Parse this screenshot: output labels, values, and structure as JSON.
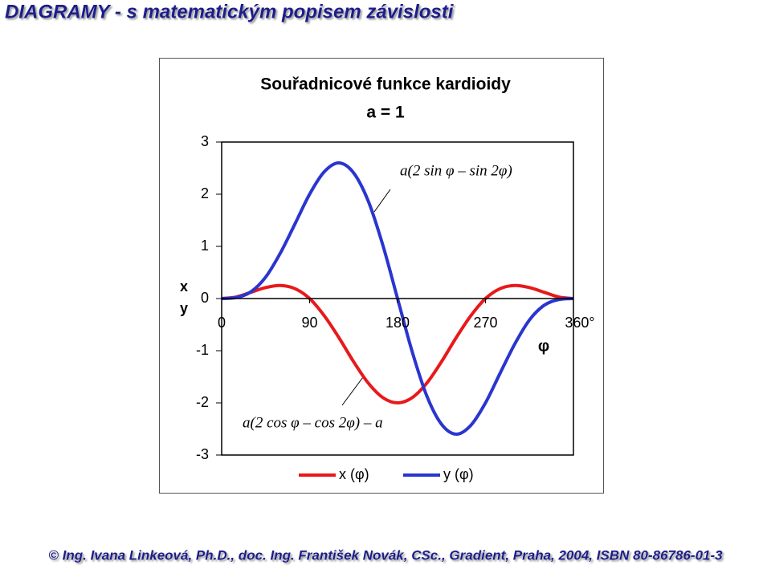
{
  "title": "DIAGRAMY - s matematickým popisem závislosti",
  "footer": "© Ing. Ivana Linkeová, Ph.D., doc. Ing. František Novák, CSc., Gradient, Praha, 2004, ISBN 80-86786-01-3",
  "chart_data": {
    "type": "line",
    "title": "Souřadnicové funkce kardioidy",
    "subtitle": "a = 1",
    "ylabel": [
      "x",
      "y"
    ],
    "xlabel": "φ",
    "annotations": [
      "a(2 sin φ – sin 2φ)",
      "a(2 cos φ – cos 2φ) – a"
    ],
    "x": [
      0,
      15,
      30,
      45,
      60,
      75,
      90,
      105,
      120,
      135,
      150,
      165,
      180,
      195,
      210,
      225,
      240,
      255,
      270,
      285,
      300,
      315,
      330,
      345,
      360
    ],
    "series": [
      {
        "name": "x (φ)",
        "color": "#e8191a",
        "values": [
          0,
          0.03,
          0.12,
          0.21,
          0.25,
          0.19,
          0,
          -0.33,
          -0.75,
          -1.21,
          -1.62,
          -1.9,
          -2,
          -1.9,
          -1.62,
          -1.21,
          -0.75,
          -0.33,
          0,
          0.19,
          0.25,
          0.21,
          0.12,
          0.03,
          0
        ]
      },
      {
        "name": "y (φ)",
        "color": "#2a35d0",
        "values": [
          0,
          0.02,
          0.13,
          0.41,
          0.87,
          1.43,
          2,
          2.43,
          2.6,
          2.41,
          1.87,
          1.02,
          0,
          -1.02,
          -1.87,
          -2.41,
          -2.6,
          -2.43,
          -2,
          -1.43,
          -0.87,
          -0.41,
          -0.13,
          -0.02,
          0
        ]
      }
    ],
    "xlim": [
      0,
      360
    ],
    "xticks": [
      0,
      90,
      180,
      270,
      {
        "value": 360,
        "label": "360°"
      }
    ],
    "ylim": [
      -3,
      3
    ],
    "yticks": [
      -3,
      -2,
      -1,
      0,
      1,
      2,
      3
    ]
  }
}
